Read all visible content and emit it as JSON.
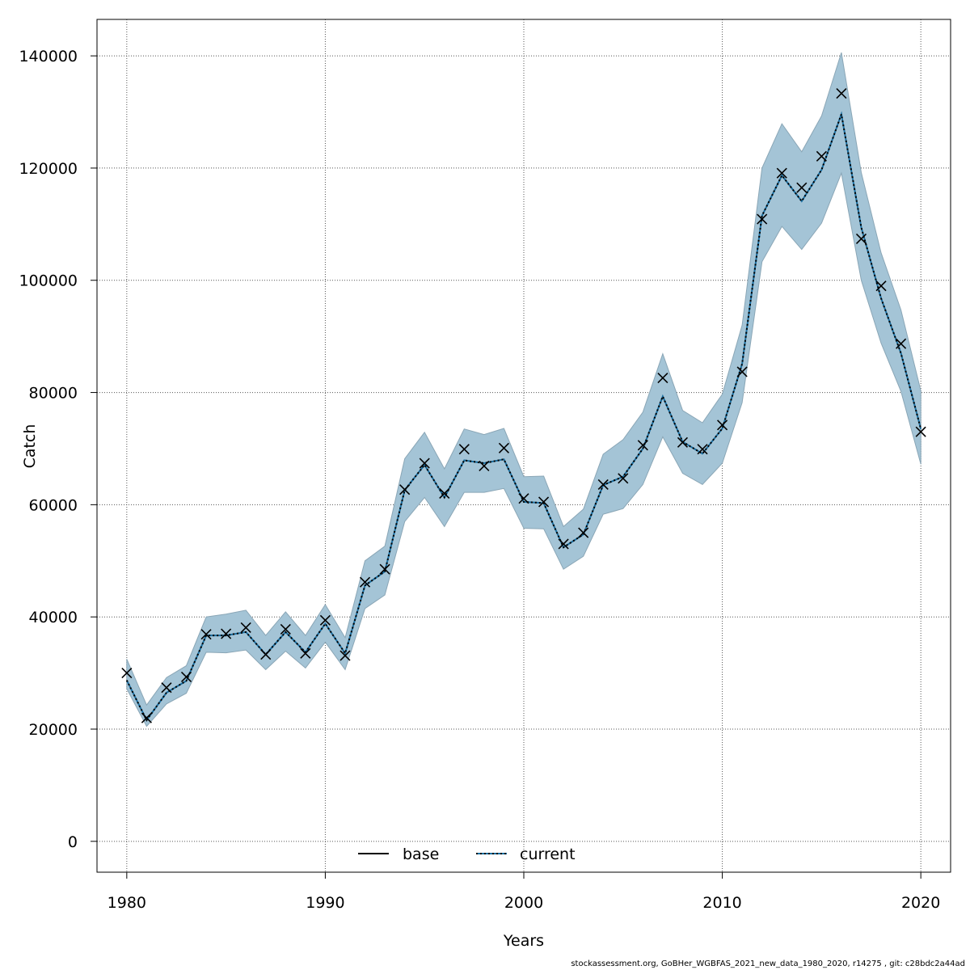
{
  "chart_data": {
    "type": "line",
    "xlabel": "Years",
    "ylabel": "Catch",
    "xlim": [
      1978.5,
      2021.5
    ],
    "ylim": [
      -5500,
      146500
    ],
    "x_ticks": [
      1980,
      1990,
      2000,
      2010,
      2020
    ],
    "y_ticks": [
      0,
      20000,
      40000,
      60000,
      80000,
      100000,
      120000,
      140000
    ],
    "grid": true,
    "legend_position": "bottom-center",
    "colors": {
      "band": "#a4c4d6",
      "band_edge": "#8aa6b6",
      "current_line": "#1a6ea0",
      "base_line": "#000000"
    },
    "years": [
      1980,
      1981,
      1982,
      1983,
      1984,
      1985,
      1986,
      1987,
      1988,
      1989,
      1990,
      1991,
      1992,
      1993,
      1994,
      1995,
      1996,
      1997,
      1998,
      1999,
      2000,
      2001,
      2002,
      2003,
      2004,
      2005,
      2006,
      2007,
      2008,
      2009,
      2010,
      2011,
      2012,
      2013,
      2014,
      2015,
      2016,
      2017,
      2018,
      2019,
      2020
    ],
    "observed_catch": [
      30000,
      22000,
      27400,
      29300,
      36900,
      37000,
      38100,
      33300,
      37800,
      33500,
      39400,
      33100,
      46200,
      48500,
      62700,
      67400,
      62000,
      69900,
      66900,
      70100,
      61100,
      60500,
      53000,
      55000,
      63600,
      64700,
      70600,
      82600,
      71100,
      69900,
      74200,
      83700,
      110900,
      119100,
      116500,
      122100,
      133300,
      107400,
      99000,
      88700,
      73000
    ],
    "band_upper": [
      32500,
      24300,
      29200,
      31300,
      40000,
      40500,
      41200,
      36700,
      40900,
      36700,
      42200,
      36300,
      50000,
      52600,
      68200,
      72900,
      66400,
      73500,
      72500,
      73600,
      65000,
      65100,
      56100,
      59200,
      69000,
      71600,
      76500,
      86900,
      76800,
      74600,
      79700,
      92000,
      120000,
      127900,
      122900,
      129300,
      140600,
      119200,
      104900,
      94700,
      80300
    ],
    "band_lower": [
      27200,
      20500,
      24500,
      26400,
      33700,
      33600,
      34100,
      30600,
      33900,
      30900,
      35500,
      30600,
      41500,
      43900,
      57000,
      61300,
      56100,
      62200,
      62200,
      62900,
      55800,
      55700,
      48500,
      50800,
      58300,
      59300,
      63600,
      72100,
      65600,
      63600,
      67400,
      78200,
      103300,
      109600,
      105500,
      110200,
      119100,
      100000,
      88800,
      80200,
      67200
    ],
    "series": [
      {
        "name": "base",
        "values": [
          28700,
          21600,
          26500,
          28600,
          36700,
          36700,
          37300,
          33300,
          37300,
          33700,
          38800,
          33500,
          45600,
          48100,
          62600,
          67100,
          61300,
          67900,
          67400,
          68100,
          60500,
          60300,
          52400,
          54700,
          63500,
          65000,
          70000,
          79300,
          71200,
          69100,
          73600,
          85100,
          111500,
          118700,
          114100,
          119700,
          129600,
          109400,
          96800,
          87000,
          73500
        ]
      },
      {
        "name": "current",
        "values": [
          28700,
          21600,
          26500,
          28600,
          36700,
          36700,
          37300,
          33300,
          37300,
          33700,
          38800,
          33500,
          45600,
          48100,
          62600,
          67100,
          61300,
          67900,
          67400,
          68100,
          60500,
          60300,
          52400,
          54700,
          63500,
          65000,
          70000,
          79300,
          71200,
          69100,
          73600,
          85100,
          111500,
          118700,
          114100,
          119700,
          129600,
          109400,
          96800,
          87000,
          73500
        ]
      }
    ]
  },
  "legend": {
    "base_label": "base",
    "current_label": "current"
  },
  "footer": "stockassessment.org, GoBHer_WGBFAS_2021_new_data_1980_2020, r14275 , git: c28bdc2a44ad"
}
